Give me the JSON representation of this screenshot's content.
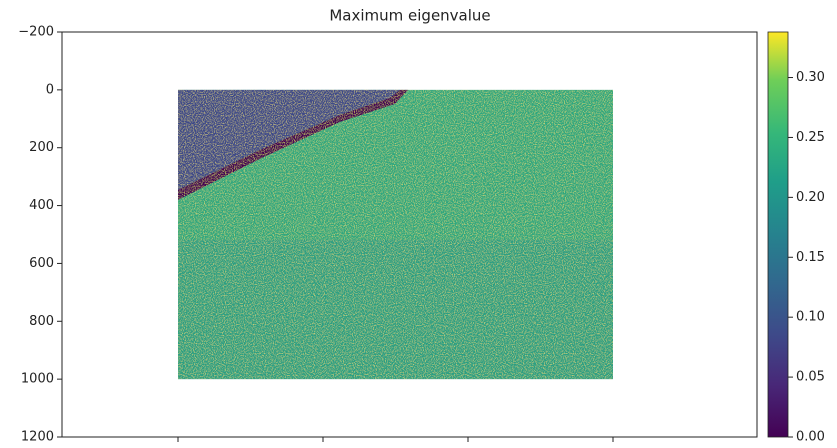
{
  "chart_data": {
    "type": "image",
    "title": "Maximum eigenvalue",
    "ylim": [
      1200,
      -200
    ],
    "yticks": [
      {
        "value": -200,
        "label": "−200"
      },
      0,
      200,
      400,
      600,
      800,
      1000,
      1200
    ],
    "image_extent_y": [
      0,
      1000
    ],
    "colormap": "viridis",
    "colorbar": {
      "lim": [
        0,
        0.338
      ],
      "ticks": [
        {
          "value": 0,
          "label": "0.00"
        },
        0.05,
        {
          "value": 0.1,
          "label": "0.10"
        },
        0.15,
        {
          "value": 0.2,
          "label": "0.20"
        },
        0.25,
        {
          "value": 0.3,
          "label": "0.30"
        }
      ]
    }
  }
}
